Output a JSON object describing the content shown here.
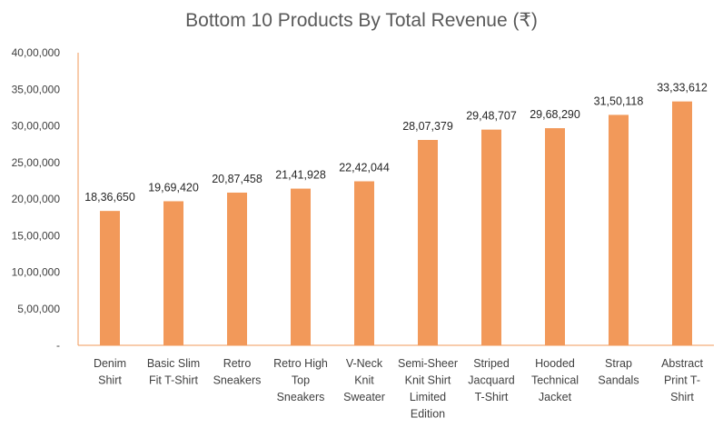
{
  "chart_data": {
    "type": "bar",
    "title": "Bottom 10 Products By Total Revenue (₹)",
    "categories": [
      [
        "Denim",
        "Shirt"
      ],
      [
        "Basic Slim",
        "Fit T-Shirt"
      ],
      [
        "Retro",
        "Sneakers"
      ],
      [
        "Retro High",
        "Top",
        "Sneakers"
      ],
      [
        "V-Neck",
        "Knit",
        "Sweater"
      ],
      [
        "Semi-Sheer",
        "Knit Shirt",
        "Limited",
        "Edition"
      ],
      [
        "Striped",
        "Jacquard",
        "T-Shirt"
      ],
      [
        "Hooded",
        "Technical",
        "Jacket"
      ],
      [
        "Strap",
        "Sandals"
      ],
      [
        "Abstract",
        "Print T-",
        "Shirt"
      ]
    ],
    "values": [
      1836650,
      1969420,
      2087458,
      2141928,
      2242044,
      2807379,
      2948707,
      2968290,
      3150118,
      3333612
    ],
    "data_labels": [
      "18,36,650",
      "19,69,420",
      "20,87,458",
      "21,41,928",
      "22,42,044",
      "28,07,379",
      "29,48,707",
      "29,68,290",
      "31,50,118",
      "33,33,612"
    ],
    "yticks": [
      "-",
      "5,00,000",
      "10,00,000",
      "15,00,000",
      "20,00,000",
      "25,00,000",
      "30,00,000",
      "35,00,000",
      "40,00,000"
    ],
    "ylim": [
      0,
      4000000
    ],
    "xlabel": "",
    "ylabel": "",
    "grid": false,
    "legend": "none",
    "colors": {
      "bar": "#F2995A",
      "axis": "#F2995A"
    }
  }
}
